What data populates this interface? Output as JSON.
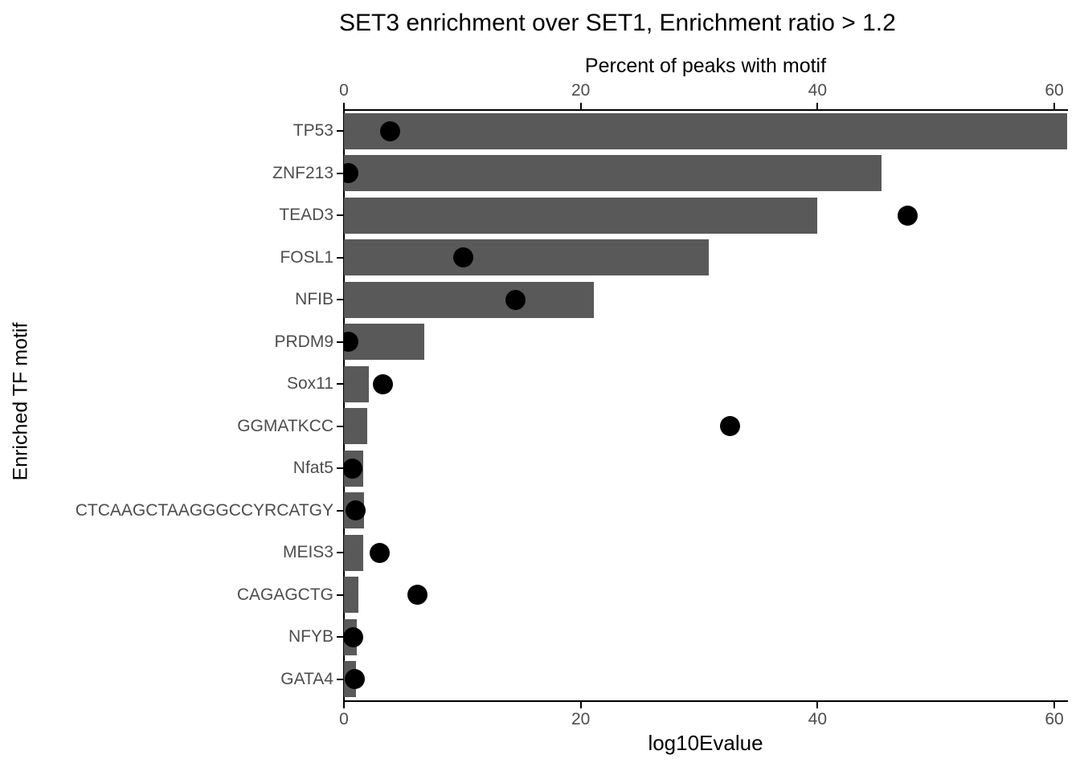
{
  "chart_data": {
    "type": "bar",
    "orientation": "horizontal",
    "title": "SET3 enrichment over SET1, Enrichment ratio > 1.2",
    "ylabel": "Enriched TF motif",
    "categories": [
      "TP53",
      "ZNF213",
      "TEAD3",
      "FOSL1",
      "NFIB",
      "PRDM9",
      "Sox11",
      "GGMATKCC",
      "Nfat5",
      "CTCAAGCTAAGGGCCYRCATGY",
      "MEIS3",
      "CAGAGCTG",
      "NFYB",
      "GATA4"
    ],
    "series": [
      {
        "name": "Percent of peaks with motif",
        "mark": "bar",
        "values": [
          61.1,
          45.4,
          40.0,
          30.8,
          21.1,
          6.8,
          2.1,
          2.0,
          1.6,
          1.7,
          1.6,
          1.2,
          1.1,
          1.0
        ]
      },
      {
        "name": "log10Evalue",
        "mark": "point",
        "values": [
          3.9,
          0.4,
          47.6,
          10.1,
          14.5,
          0.4,
          3.3,
          32.6,
          0.7,
          1.0,
          3.0,
          6.2,
          0.8,
          0.9
        ]
      }
    ],
    "top_axis": {
      "label": "Percent of peaks with motif",
      "ticks": [
        0,
        20,
        40,
        60
      ],
      "range": [
        0,
        61.1
      ]
    },
    "bottom_axis": {
      "label": "log10Evalue",
      "ticks": [
        0,
        20,
        40,
        60
      ],
      "range": [
        0,
        61.1
      ]
    },
    "legend": "none",
    "grid": false,
    "colors": {
      "bar": "#595959",
      "point": "#000000",
      "axis": "#000000",
      "tick_label": "#4d4d4d",
      "background": "#ffffff"
    }
  }
}
